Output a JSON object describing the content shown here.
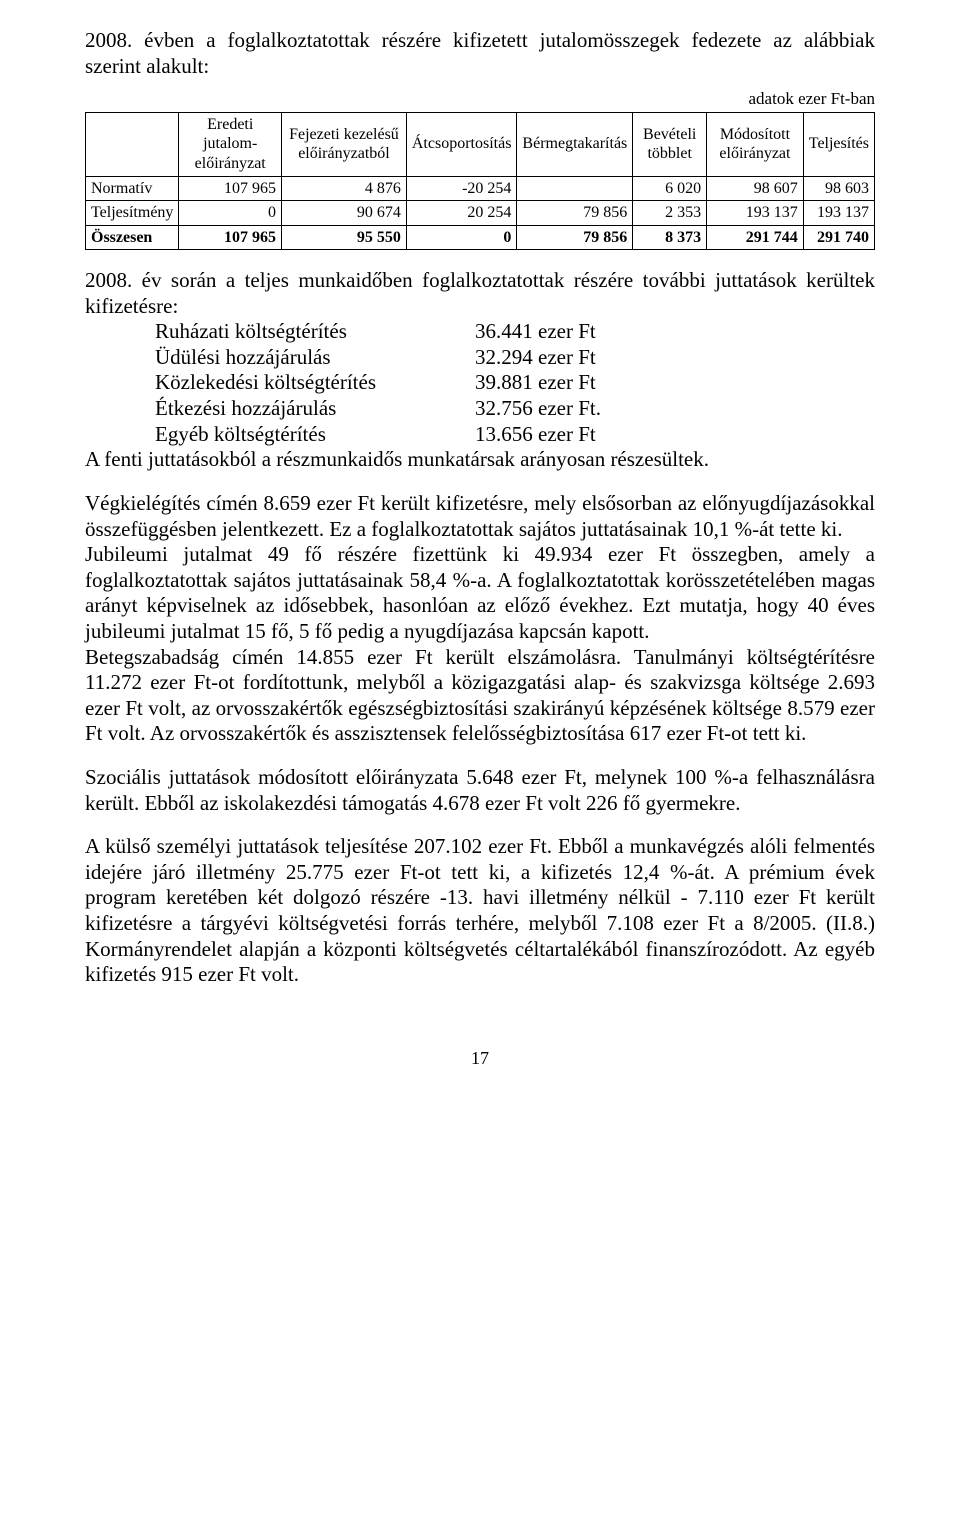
{
  "intro": "2008. évben a foglalkoztatottak részére kifizetett jutalomösszegek fedezete az alábbiak szerint alakult:",
  "table": {
    "caption": "adatok ezer Ft-ban",
    "headers": [
      "",
      "Eredeti jutalom-előirányzat",
      "Fejezeti kezelésű előirányzatból",
      "Átcsoportosítás",
      "Bérmegtakarítás",
      "Bevételi többlet",
      "Módosított előirányzat",
      "Teljesítés"
    ],
    "rows": [
      {
        "label": "Normatív",
        "cells": [
          "107 965",
          "4 876",
          "-20 254",
          "",
          "6 020",
          "98 607",
          "98 603"
        ],
        "bold": false
      },
      {
        "label": "Teljesítmény",
        "cells": [
          "0",
          "90 674",
          "20 254",
          "79 856",
          "2 353",
          "193 137",
          "193 137"
        ],
        "bold": false
      },
      {
        "label": "Összesen",
        "cells": [
          "107 965",
          "95 550",
          "0",
          "79 856",
          "8 373",
          "291 744",
          "291 740"
        ],
        "bold": true
      }
    ]
  },
  "para2_intro": "2008. év során a teljes munkaidőben foglalkoztatottak részére további juttatások kerültek kifizetésre:",
  "benefits": [
    {
      "label": "Ruházati költségtérítés",
      "value": "36.441 ezer Ft"
    },
    {
      "label": "Üdülési hozzájárulás",
      "value": "32.294 ezer Ft"
    },
    {
      "label": "Közlekedési költségtérítés",
      "value": "39.881 ezer Ft"
    },
    {
      "label": "Étkezési hozzájárulás",
      "value": "32.756 ezer Ft."
    },
    {
      "label": "Egyéb költségtérítés",
      "value": "13.656 ezer Ft"
    }
  ],
  "para2_outro": "A fenti juttatásokból a részmunkaidős munkatársak arányosan részesültek.",
  "para3": "Végkielégítés címén 8.659 ezer Ft került kifizetésre, mely elsősorban az előnyugdíjazásokkal összefüggésben jelentkezett. Ez a foglalkoztatottak sajátos juttatásainak 10,1 %-át tette ki.",
  "para4": "Jubileumi jutalmat 49 fő részére fizettünk ki 49.934 ezer Ft összegben, amely a foglalkoztatottak sajátos juttatásainak 58,4 %-a. A foglalkoztatottak korösszetételében magas arányt képviselnek az idősebbek, hasonlóan az előző évekhez. Ezt mutatja, hogy 40 éves jubileumi jutalmat 15 fő, 5 fő pedig a nyugdíjazása kapcsán kapott.",
  "para5": "Betegszabadság címén 14.855 ezer Ft került elszámolásra. Tanulmányi költségtérítésre 11.272 ezer Ft-ot fordítottunk, melyből a közigazgatási alap- és szakvizsga költsége 2.693 ezer Ft volt, az orvosszakértők egészségbiztosítási szakirányú képzésének költsége 8.579 ezer Ft volt. Az orvosszakértők és asszisztensek felelősségbiztosítása 617 ezer Ft-ot tett ki.",
  "para6": "Szociális juttatások módosított előirányzata 5.648 ezer Ft, melynek 100 %-a felhasználásra került. Ebből az iskolakezdési támogatás 4.678 ezer Ft volt 226 fő gyermekre.",
  "para7": "A külső személyi juttatások teljesítése 207.102 ezer Ft. Ebből a munkavégzés alóli felmentés idejére járó illetmény 25.775 ezer Ft-ot tett ki, a kifizetés 12,4 %-át. A prémium évek program keretében két dolgozó részére -13. havi illetmény nélkül - 7.110 ezer Ft került kifizetésre a tárgyévi költségvetési forrás terhére, melyből 7.108 ezer Ft a 8/2005. (II.8.) Kormányrendelet alapján a központi költségvetés céltartalékából finanszírozódott. Az egyéb kifizetés 915 ezer Ft volt.",
  "pageNumber": "17"
}
